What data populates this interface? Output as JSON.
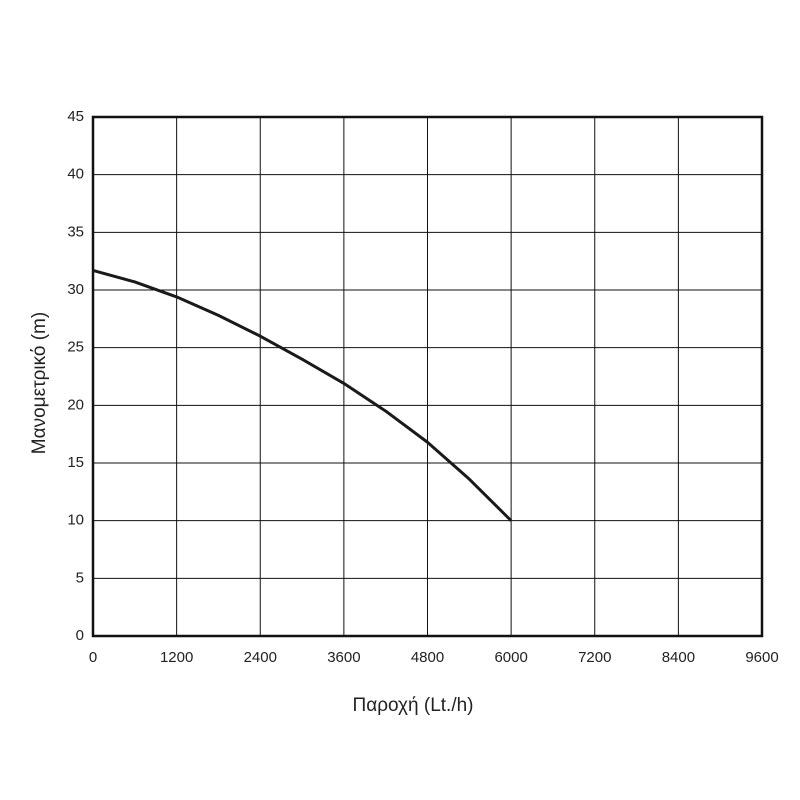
{
  "chart_data": {
    "type": "line",
    "x_label": "Παροχή (Lt./h)",
    "y_label": "Μανομετρικό (m)",
    "x": [
      0,
      600,
      1200,
      1800,
      2400,
      3000,
      3600,
      4200,
      4800,
      5400,
      6000
    ],
    "series": [
      {
        "color": "#1a1a1a",
        "values": [
          31.7,
          30.7,
          29.4,
          27.8,
          26.0,
          24.0,
          21.9,
          19.5,
          16.8,
          13.6,
          10.0
        ]
      }
    ],
    "xlim": [
      0,
      9600
    ],
    "xticks": [
      0,
      1200,
      2400,
      3600,
      4800,
      6000,
      7200,
      8400,
      9600
    ],
    "ylim": [
      0,
      45
    ],
    "yticks": [
      0,
      5,
      10,
      15,
      20,
      25,
      30,
      35,
      40,
      45
    ],
    "grid": true
  }
}
